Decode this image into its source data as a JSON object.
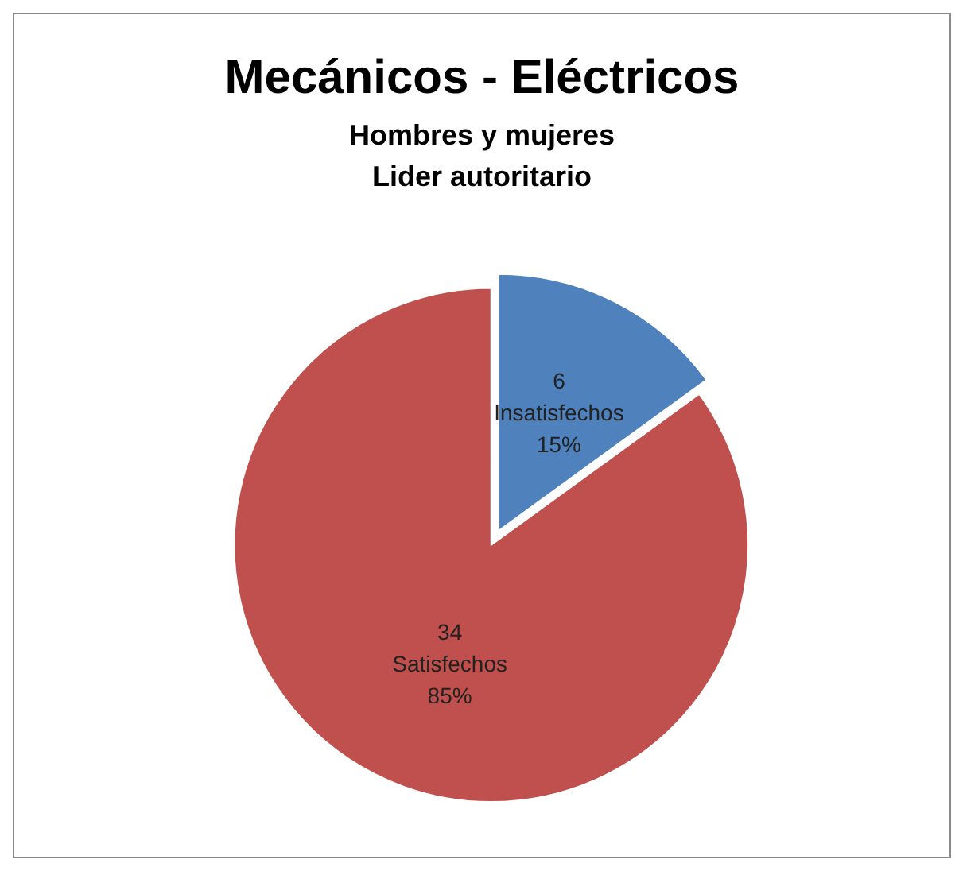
{
  "chart_data": {
    "type": "pie",
    "title": "Mecánicos - Eléctricos",
    "subtitle": "Hombres y mujeres\nLider autoritario",
    "categories": [
      "Insatisfechos",
      "Satisfechos"
    ],
    "values": [
      15,
      85
    ],
    "colors": [
      "#4f81bd",
      "#c0504d"
    ],
    "value_labels": [
      "6\n15%",
      "34\n85%"
    ],
    "legend": false
  }
}
